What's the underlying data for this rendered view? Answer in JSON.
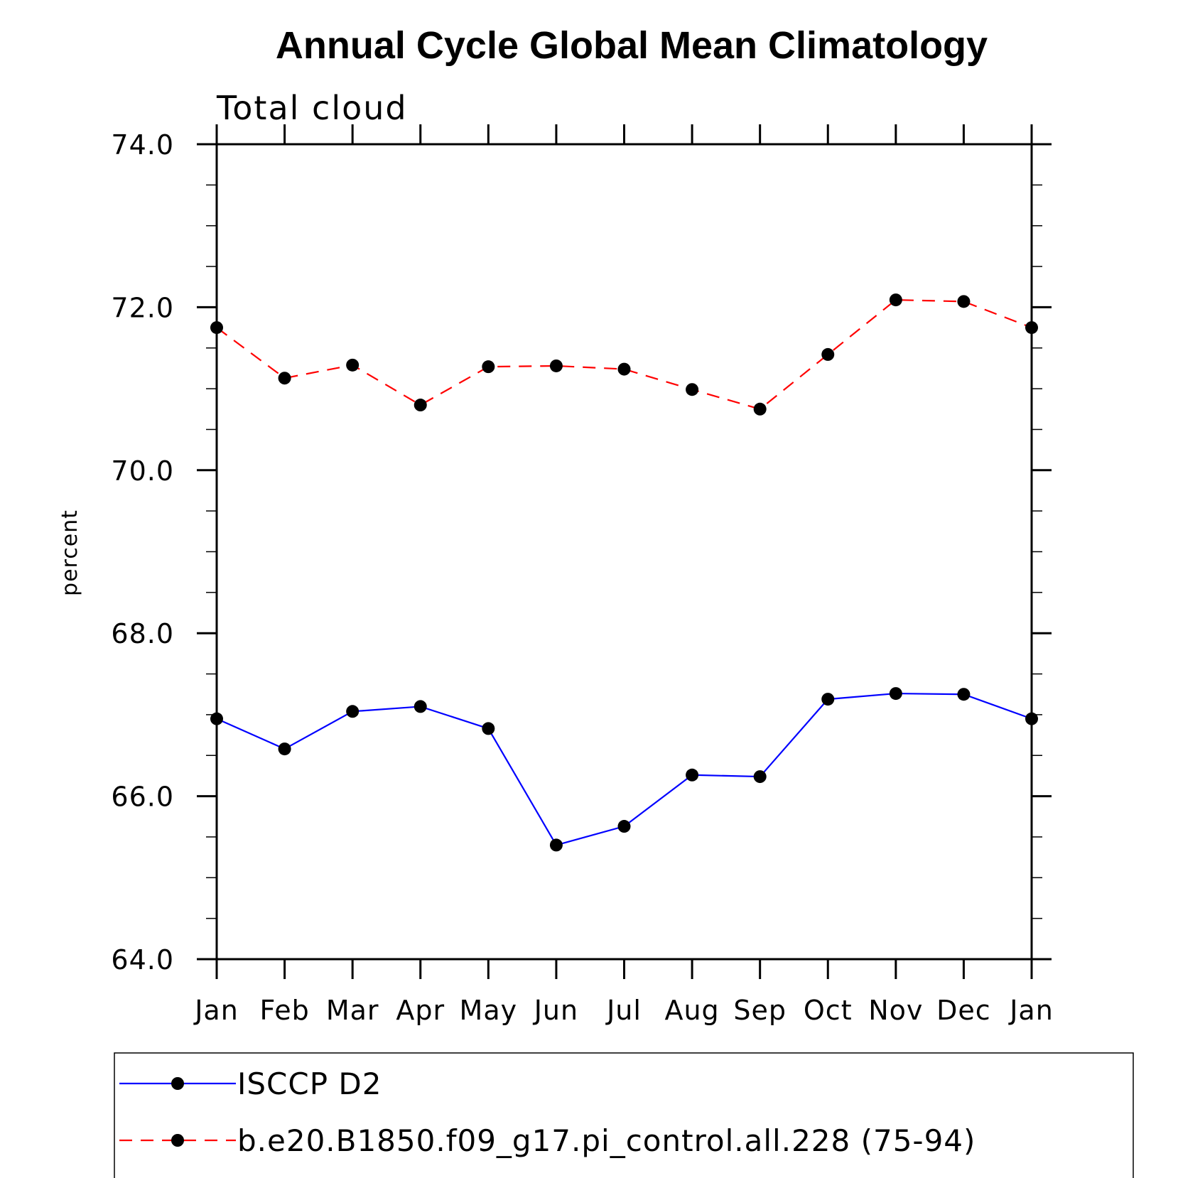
{
  "chart_data": {
    "type": "line",
    "title": "Annual Cycle Global Mean Climatology",
    "subtitle": "Total cloud",
    "xlabel": "",
    "ylabel": "percent",
    "categories": [
      "Jan",
      "Feb",
      "Mar",
      "Apr",
      "May",
      "Jun",
      "Jul",
      "Aug",
      "Sep",
      "Oct",
      "Nov",
      "Dec",
      "Jan"
    ],
    "ylim": [
      64.0,
      74.0
    ],
    "yticks": [
      "64.0",
      "66.0",
      "68.0",
      "70.0",
      "72.0",
      "74.0"
    ],
    "ytick_values": [
      64,
      66,
      68,
      70,
      72,
      74
    ],
    "y_minor_step": 0.5,
    "grid": false,
    "legend_position": "bottom",
    "series": [
      {
        "name": "ISCCP D2",
        "color": "#0000ff",
        "dash": "solid",
        "marker": "filled-circle",
        "values": [
          66.95,
          66.58,
          67.04,
          67.1,
          66.83,
          65.4,
          65.63,
          66.26,
          66.24,
          67.19,
          67.26,
          67.25,
          66.95
        ]
      },
      {
        "name": "b.e20.B1850.f09_g17.pi_control.all.228 (75-94)",
        "color": "#ff0000",
        "dash": "dashed",
        "marker": "filled-circle",
        "values": [
          71.75,
          71.13,
          71.29,
          70.8,
          71.27,
          71.28,
          71.24,
          70.99,
          70.75,
          71.42,
          72.09,
          72.07,
          71.75
        ]
      }
    ]
  }
}
